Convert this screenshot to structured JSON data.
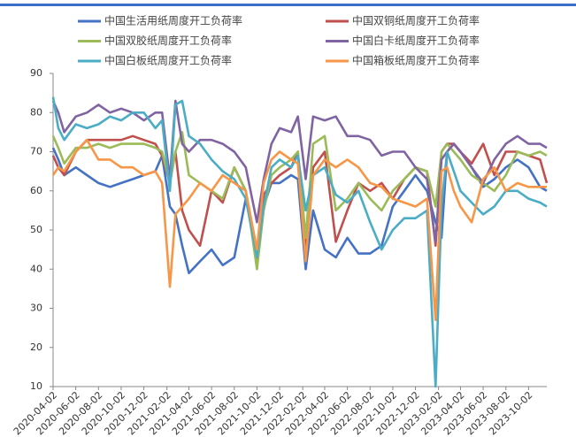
{
  "chart_data": {
    "type": "line",
    "x": [
      "2020-04-02",
      "2020-04-16",
      "2020-05-02",
      "2020-06-02",
      "2020-07-02",
      "2020-08-02",
      "2020-09-02",
      "2020-10-02",
      "2020-11-02",
      "2020-12-02",
      "2021-01-02",
      "2021-01-20",
      "2021-02-10",
      "2021-02-25",
      "2021-03-15",
      "2021-04-02",
      "2021-05-02",
      "2021-06-02",
      "2021-07-02",
      "2021-08-02",
      "2021-09-02",
      "2021-10-02",
      "2021-10-20",
      "2021-11-10",
      "2021-12-02",
      "2022-01-02",
      "2022-01-20",
      "2022-02-10",
      "2022-03-02",
      "2022-04-02",
      "2022-05-02",
      "2022-06-02",
      "2022-07-02",
      "2022-08-02",
      "2022-09-02",
      "2022-10-02",
      "2022-11-02",
      "2022-12-02",
      "2023-01-02",
      "2023-01-25",
      "2023-02-10",
      "2023-02-25",
      "2023-03-15",
      "2023-04-02",
      "2023-05-02",
      "2023-06-02",
      "2023-07-02",
      "2023-08-02",
      "2023-09-02",
      "2023-10-02",
      "2023-11-02",
      "2023-11-20"
    ],
    "series": [
      {
        "name": "中国生活用纸周度开工负荷率",
        "color": "#4472c4",
        "values": [
          71,
          68,
          64,
          66,
          64,
          62,
          61,
          62,
          63,
          64,
          65,
          69,
          56,
          54,
          46,
          39,
          42,
          45,
          41,
          43,
          58,
          44,
          56,
          62,
          62,
          64,
          63,
          40,
          55,
          45,
          43,
          48,
          44,
          44,
          46,
          56,
          60,
          64,
          60,
          52,
          48,
          70,
          72,
          70,
          66,
          61,
          63,
          66,
          68,
          66,
          61,
          60
        ]
      },
      {
        "name": "中国双铜纸周度开工负荷率",
        "color": "#c0504d",
        "values": [
          69,
          66,
          64,
          70,
          73,
          73,
          73,
          73,
          74,
          73,
          72,
          69,
          62,
          70,
          55,
          50,
          46,
          60,
          57,
          66,
          60,
          42,
          59,
          62,
          64,
          66,
          70,
          44,
          66,
          70,
          47,
          55,
          62,
          60,
          62,
          58,
          63,
          66,
          65,
          46,
          70,
          72,
          72,
          70,
          67,
          72,
          64,
          70,
          70,
          69,
          68,
          62
        ]
      },
      {
        "name": "中国双胶纸周度开工负荷率",
        "color": "#9bbb59",
        "values": [
          74,
          71,
          67,
          71,
          71,
          72,
          71,
          72,
          72,
          72,
          71,
          70,
          62,
          70,
          75,
          64,
          62,
          60,
          58,
          66,
          60,
          40,
          55,
          64,
          66,
          68,
          70,
          48,
          72,
          74,
          55,
          58,
          62,
          58,
          55,
          60,
          63,
          66,
          65,
          56,
          70,
          72,
          70,
          68,
          64,
          62,
          60,
          64,
          70,
          69,
          70,
          69
        ]
      },
      {
        "name": "中国白卡纸周度开工负荷率",
        "color": "#8064a2",
        "values": [
          83,
          80,
          75,
          79,
          80,
          82,
          80,
          81,
          80,
          78,
          80,
          80,
          63,
          83,
          72,
          70,
          73,
          73,
          72,
          70,
          66,
          52,
          63,
          72,
          76,
          75,
          79,
          63,
          79,
          78,
          79,
          74,
          74,
          73,
          69,
          70,
          70,
          66,
          63,
          47,
          68,
          70,
          72,
          70,
          66,
          62,
          68,
          72,
          74,
          72,
          72,
          71
        ]
      },
      {
        "name": "中国白板纸周度开工负荷率",
        "color": "#4bacc6",
        "values": [
          84,
          76,
          73,
          77,
          76,
          77,
          79,
          78,
          80,
          80,
          76,
          78,
          60,
          82,
          83,
          74,
          72,
          68,
          65,
          63,
          58,
          43,
          56,
          66,
          68,
          66,
          69,
          55,
          64,
          66,
          59,
          57,
          60,
          52,
          45,
          50,
          53,
          53,
          55,
          10,
          56,
          70,
          65,
          60,
          57,
          54,
          56,
          60,
          60,
          58,
          57,
          56
        ]
      },
      {
        "name": "中国箱板纸周度开工负荷率",
        "color": "#f79646",
        "values": [
          64,
          66,
          65,
          70,
          73,
          68,
          68,
          66,
          66,
          64,
          65,
          62,
          35.5,
          54,
          56,
          58,
          62,
          60,
          64,
          62,
          60,
          45,
          62,
          68,
          70,
          68,
          67,
          42,
          64,
          68,
          66,
          68,
          66,
          62,
          61,
          58,
          57,
          56,
          58,
          27,
          65,
          66,
          60,
          56,
          52,
          63,
          66,
          60,
          62,
          61,
          61,
          61
        ]
      }
    ],
    "xlim": [
      "2020-04-02",
      "2023-11-20"
    ],
    "xticks": [
      "2020-04-02",
      "2020-06-02",
      "2020-08-02",
      "2020-10-02",
      "2020-12-02",
      "2021-02-02",
      "2021-04-02",
      "2021-06-02",
      "2021-08-02",
      "2021-10-02",
      "2021-12-02",
      "2022-02-02",
      "2022-04-02",
      "2022-06-02",
      "2022-08-02",
      "2022-10-02",
      "2022-12-02",
      "2023-02-02",
      "2023-04-02",
      "2023-06-02",
      "2023-08-02",
      "2023-10-02"
    ],
    "ylim": [
      10,
      90
    ],
    "yticks": [
      10,
      20,
      30,
      40,
      50,
      60,
      70,
      80,
      90
    ],
    "legend": "top",
    "grid": false
  }
}
